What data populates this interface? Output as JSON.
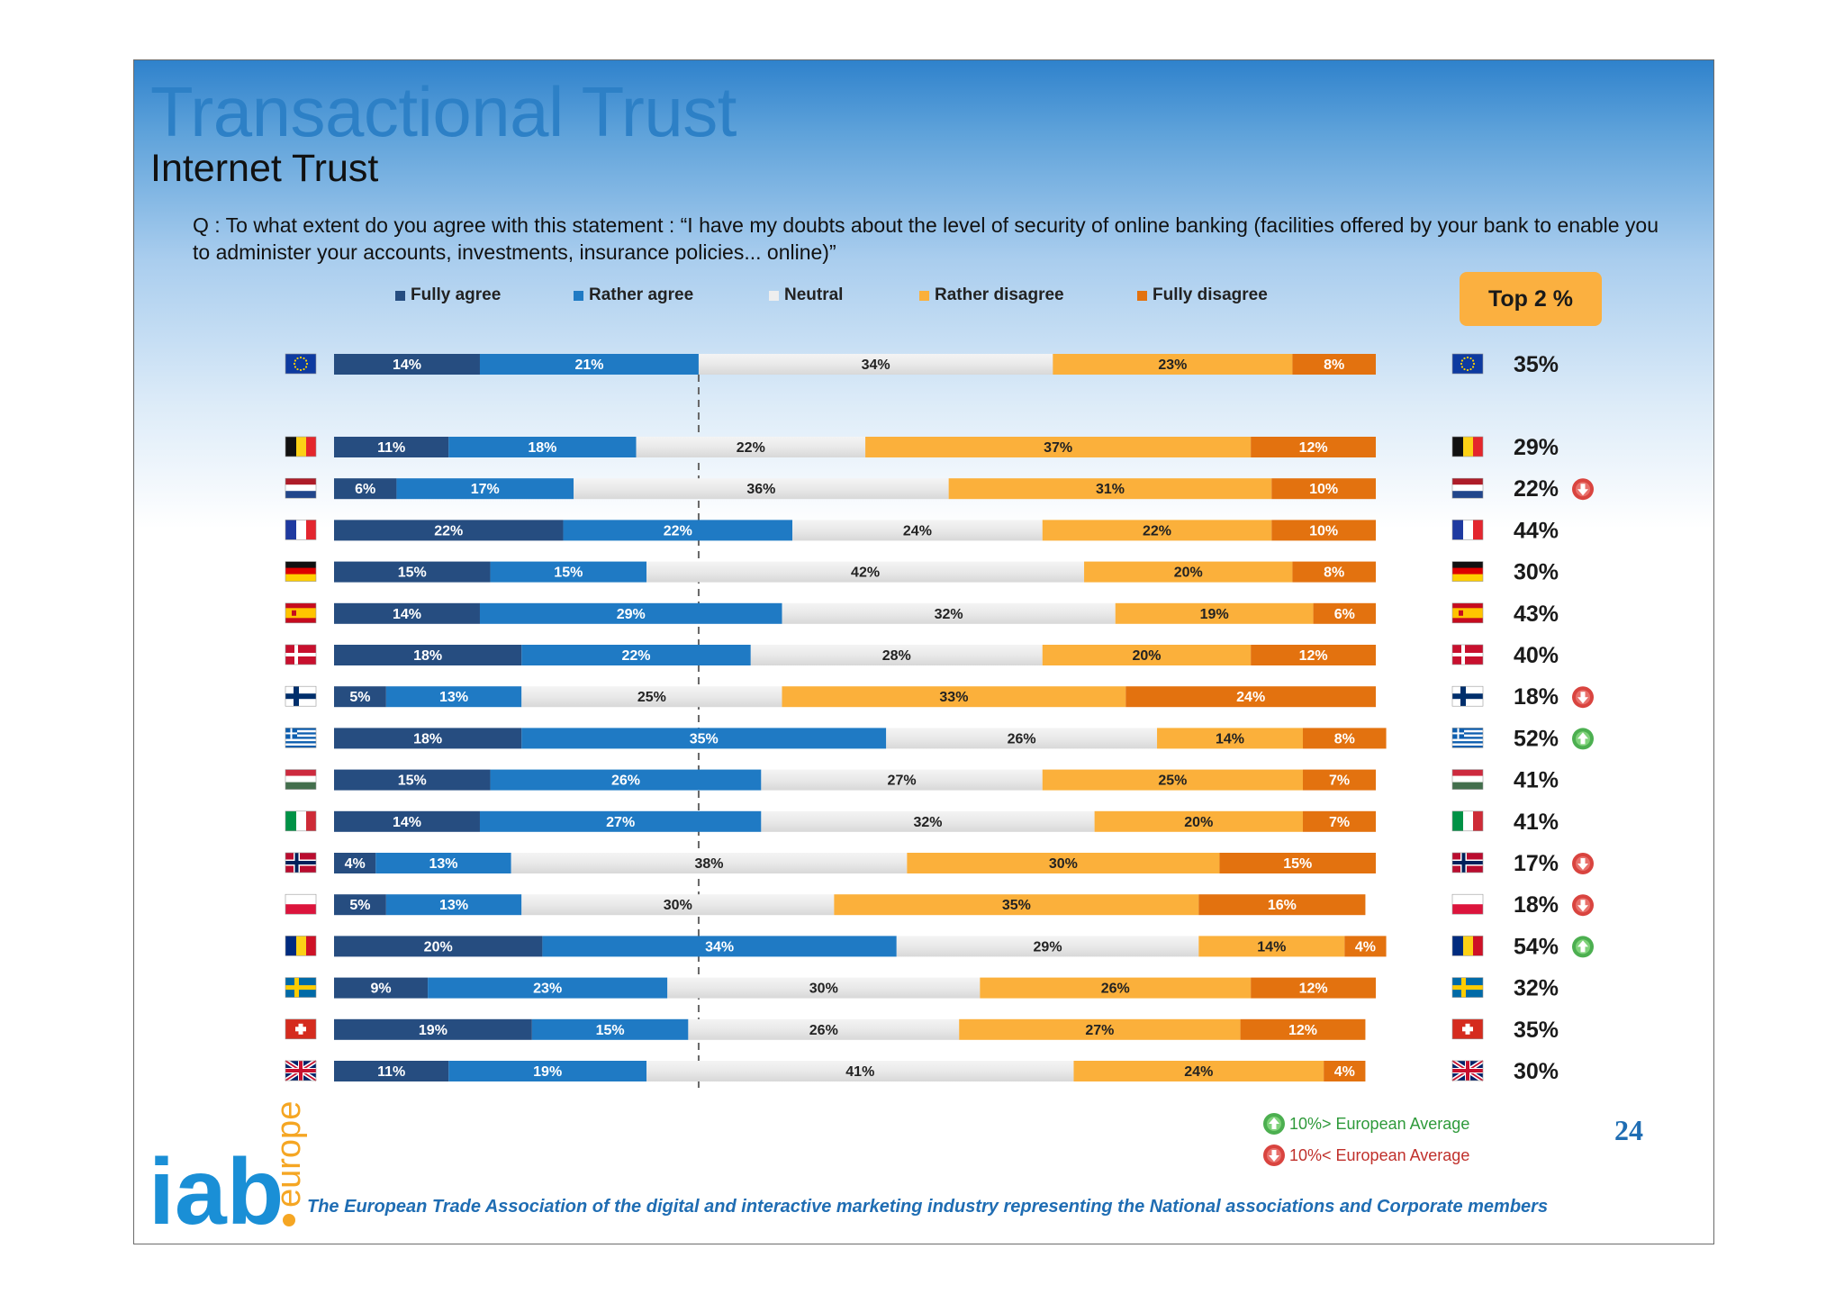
{
  "title": "Transactional Trust",
  "subtitle": "Internet Trust",
  "question": "Q : To what extent do you agree with this statement : “I have my doubts about the level of security of online banking (facilities offered by your bank to enable you to administer your accounts, investments, insurance policies...  online)”",
  "top2_label": "Top 2 %",
  "page_number": "24",
  "indicator_legend": {
    "above": "10%> European Average",
    "below": "10%< European Average"
  },
  "footer": "The European Trade Association of the digital and interactive marketing industry representing the National associations and Corporate members",
  "logo": {
    "main": "iab",
    "sub": "europe"
  },
  "colors": {
    "fully_agree": "#264d80",
    "rather_agree": "#1f7ac4",
    "neutral": "#e4e4e4",
    "rather_disagree": "#fbb03b",
    "fully_disagree": "#e3720f",
    "indicator_up": "#4caf50",
    "indicator_down": "#d9443f"
  },
  "chart_data": {
    "type": "bar",
    "orientation": "horizontal",
    "stacked": true,
    "legend_placement": "top",
    "series": [
      {
        "name": "Fully agree",
        "values": [
          14,
          11,
          6,
          22,
          15,
          14,
          18,
          5,
          18,
          15,
          14,
          4,
          5,
          20,
          9,
          19,
          11
        ]
      },
      {
        "name": "Rather agree",
        "values": [
          21,
          18,
          17,
          22,
          15,
          29,
          22,
          13,
          35,
          26,
          27,
          13,
          13,
          34,
          23,
          15,
          19
        ]
      },
      {
        "name": "Neutral",
        "values": [
          34,
          22,
          36,
          24,
          42,
          32,
          28,
          25,
          26,
          27,
          32,
          38,
          30,
          29,
          30,
          26,
          41
        ]
      },
      {
        "name": "Rather disagree",
        "values": [
          23,
          37,
          31,
          22,
          20,
          19,
          20,
          33,
          14,
          25,
          20,
          30,
          35,
          14,
          26,
          27,
          24
        ]
      },
      {
        "name": "Fully disagree",
        "values": [
          8,
          12,
          10,
          10,
          8,
          6,
          12,
          24,
          8,
          7,
          7,
          15,
          16,
          4,
          12,
          12,
          4
        ]
      }
    ],
    "rows": [
      {
        "flag": "eu-flag-icon",
        "top2": "35%",
        "indicator": ""
      },
      {
        "flag": "belgium-flag-icon",
        "top2": "29%",
        "indicator": ""
      },
      {
        "flag": "netherlands-flag-icon",
        "top2": "22%",
        "indicator": "down"
      },
      {
        "flag": "france-flag-icon",
        "top2": "44%",
        "indicator": ""
      },
      {
        "flag": "germany-flag-icon",
        "top2": "30%",
        "indicator": ""
      },
      {
        "flag": "spain-flag-icon",
        "top2": "43%",
        "indicator": ""
      },
      {
        "flag": "denmark-flag-icon",
        "top2": "40%",
        "indicator": ""
      },
      {
        "flag": "finland-flag-icon",
        "top2": "18%",
        "indicator": "down"
      },
      {
        "flag": "greece-flag-icon",
        "top2": "52%",
        "indicator": "up"
      },
      {
        "flag": "hungary-flag-icon",
        "top2": "41%",
        "indicator": ""
      },
      {
        "flag": "italy-flag-icon",
        "top2": "41%",
        "indicator": ""
      },
      {
        "flag": "norway-flag-icon",
        "top2": "17%",
        "indicator": "down"
      },
      {
        "flag": "poland-flag-icon",
        "top2": "18%",
        "indicator": "down"
      },
      {
        "flag": "romania-flag-icon",
        "top2": "54%",
        "indicator": "up"
      },
      {
        "flag": "sweden-flag-icon",
        "top2": "32%",
        "indicator": ""
      },
      {
        "flag": "switzerland-flag-icon",
        "top2": "35%",
        "indicator": ""
      },
      {
        "flag": "uk-flag-icon",
        "top2": "30%",
        "indicator": ""
      }
    ],
    "eu_top2_value": 35,
    "xlim": [
      0,
      100
    ]
  }
}
